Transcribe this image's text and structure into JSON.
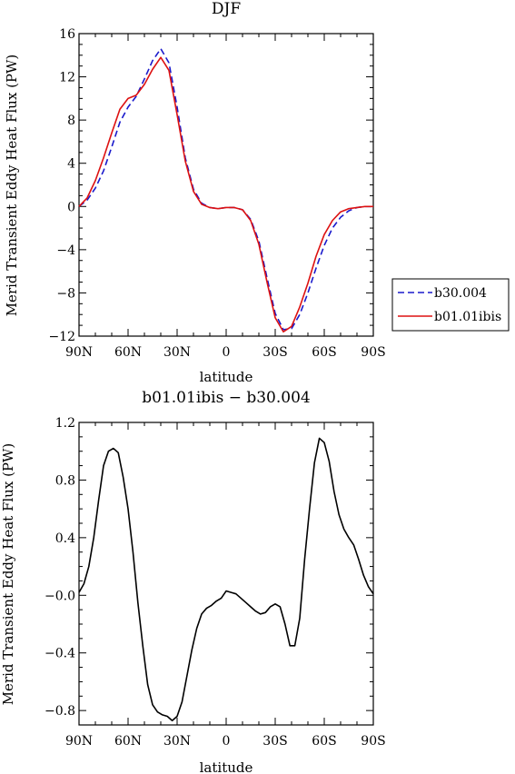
{
  "chart_data": [
    {
      "type": "line",
      "title": "DJF",
      "xlabel": "latitude",
      "ylabel": "Merid Transient Eddy Heat Flux (PW)",
      "xlim": [
        90,
        -90
      ],
      "ylim": [
        -12,
        16
      ],
      "xticks": [
        90,
        60,
        30,
        0,
        -30,
        -60,
        -90
      ],
      "xtick_labels": [
        "90N",
        "60N",
        "30N",
        "0",
        "30S",
        "60S",
        "90S"
      ],
      "yticks": [
        -12,
        -8,
        -4,
        0,
        4,
        8,
        12,
        16
      ],
      "ytick_labels": [
        "−12",
        "−8",
        "−4",
        "0",
        "4",
        "8",
        "12",
        "16"
      ],
      "legend_position": "right-outside",
      "x": [
        90,
        85,
        80,
        75,
        70,
        65,
        60,
        55,
        50,
        45,
        40,
        35,
        30,
        25,
        20,
        15,
        10,
        5,
        0,
        -5,
        -10,
        -15,
        -20,
        -25,
        -30,
        -35,
        -40,
        -45,
        -50,
        -55,
        -60,
        -65,
        -70,
        -75,
        -80,
        -85,
        -90
      ],
      "series": [
        {
          "name": "b30.004",
          "color": "#1a1acc",
          "dash": "dashed",
          "values": [
            0.0,
            0.6,
            1.7,
            3.3,
            5.5,
            7.8,
            9.2,
            10.2,
            11.8,
            13.5,
            14.6,
            13.3,
            9.2,
            4.5,
            1.6,
            0.3,
            -0.1,
            -0.2,
            -0.1,
            -0.1,
            -0.3,
            -1.2,
            -3.2,
            -6.6,
            -9.9,
            -11.4,
            -11.3,
            -10.0,
            -8.0,
            -5.7,
            -3.6,
            -2.0,
            -1.0,
            -0.4,
            -0.1,
            0.0,
            0.0
          ]
        },
        {
          "name": "b01.01ibis",
          "color": "#dd1111",
          "dash": "solid",
          "values": [
            0.0,
            0.8,
            2.4,
            4.5,
            6.8,
            9.0,
            10.0,
            10.3,
            11.3,
            12.7,
            13.8,
            12.6,
            8.5,
            4.2,
            1.4,
            0.2,
            -0.1,
            -0.2,
            -0.1,
            -0.1,
            -0.3,
            -1.3,
            -3.5,
            -7.0,
            -10.3,
            -11.6,
            -11.1,
            -9.3,
            -7.1,
            -4.6,
            -2.6,
            -1.3,
            -0.5,
            -0.2,
            -0.1,
            0.0,
            0.0
          ]
        }
      ]
    },
    {
      "type": "line",
      "title": "b01.01ibis − b30.004",
      "xlabel": "latitude",
      "ylabel": "Merid Transient Eddy Heat Flux (PW)",
      "xlim": [
        90,
        -90
      ],
      "ylim": [
        -0.9,
        1.2
      ],
      "xticks": [
        90,
        60,
        30,
        0,
        -30,
        -60,
        -90
      ],
      "xtick_labels": [
        "90N",
        "60N",
        "30N",
        "0",
        "30S",
        "60S",
        "90S"
      ],
      "yticks": [
        -0.8,
        -0.4,
        0.0,
        0.4,
        0.8,
        1.2
      ],
      "ytick_labels": [
        "−0.8",
        "−0.4",
        "−0.0",
        "0.4",
        "0.8",
        "1.2"
      ],
      "x": [
        90,
        87,
        84,
        81,
        78,
        75,
        72,
        69,
        66,
        63,
        60,
        57,
        54,
        51,
        48,
        45,
        42,
        39,
        36,
        33,
        30,
        27,
        24,
        21,
        18,
        15,
        12,
        9,
        6,
        3,
        0,
        -3,
        -6,
        -9,
        -12,
        -15,
        -18,
        -21,
        -24,
        -27,
        -30,
        -33,
        -36,
        -39,
        -42,
        -45,
        -48,
        -51,
        -54,
        -57,
        -60,
        -63,
        -66,
        -69,
        -72,
        -75,
        -78,
        -81,
        -84,
        -87,
        -90
      ],
      "series": [
        {
          "color": "#000000",
          "dash": "solid",
          "values": [
            0.02,
            0.08,
            0.2,
            0.4,
            0.66,
            0.9,
            1.0,
            1.02,
            0.99,
            0.82,
            0.6,
            0.3,
            -0.05,
            -0.35,
            -0.62,
            -0.76,
            -0.81,
            -0.83,
            -0.84,
            -0.87,
            -0.84,
            -0.74,
            -0.56,
            -0.38,
            -0.23,
            -0.13,
            -0.09,
            -0.07,
            -0.04,
            -0.02,
            0.03,
            0.02,
            0.01,
            -0.02,
            -0.05,
            -0.08,
            -0.11,
            -0.13,
            -0.12,
            -0.08,
            -0.06,
            -0.08,
            -0.2,
            -0.35,
            -0.35,
            -0.16,
            0.25,
            0.6,
            0.92,
            1.09,
            1.06,
            0.93,
            0.72,
            0.56,
            0.46,
            0.4,
            0.35,
            0.25,
            0.14,
            0.06,
            0.01
          ]
        }
      ]
    }
  ]
}
